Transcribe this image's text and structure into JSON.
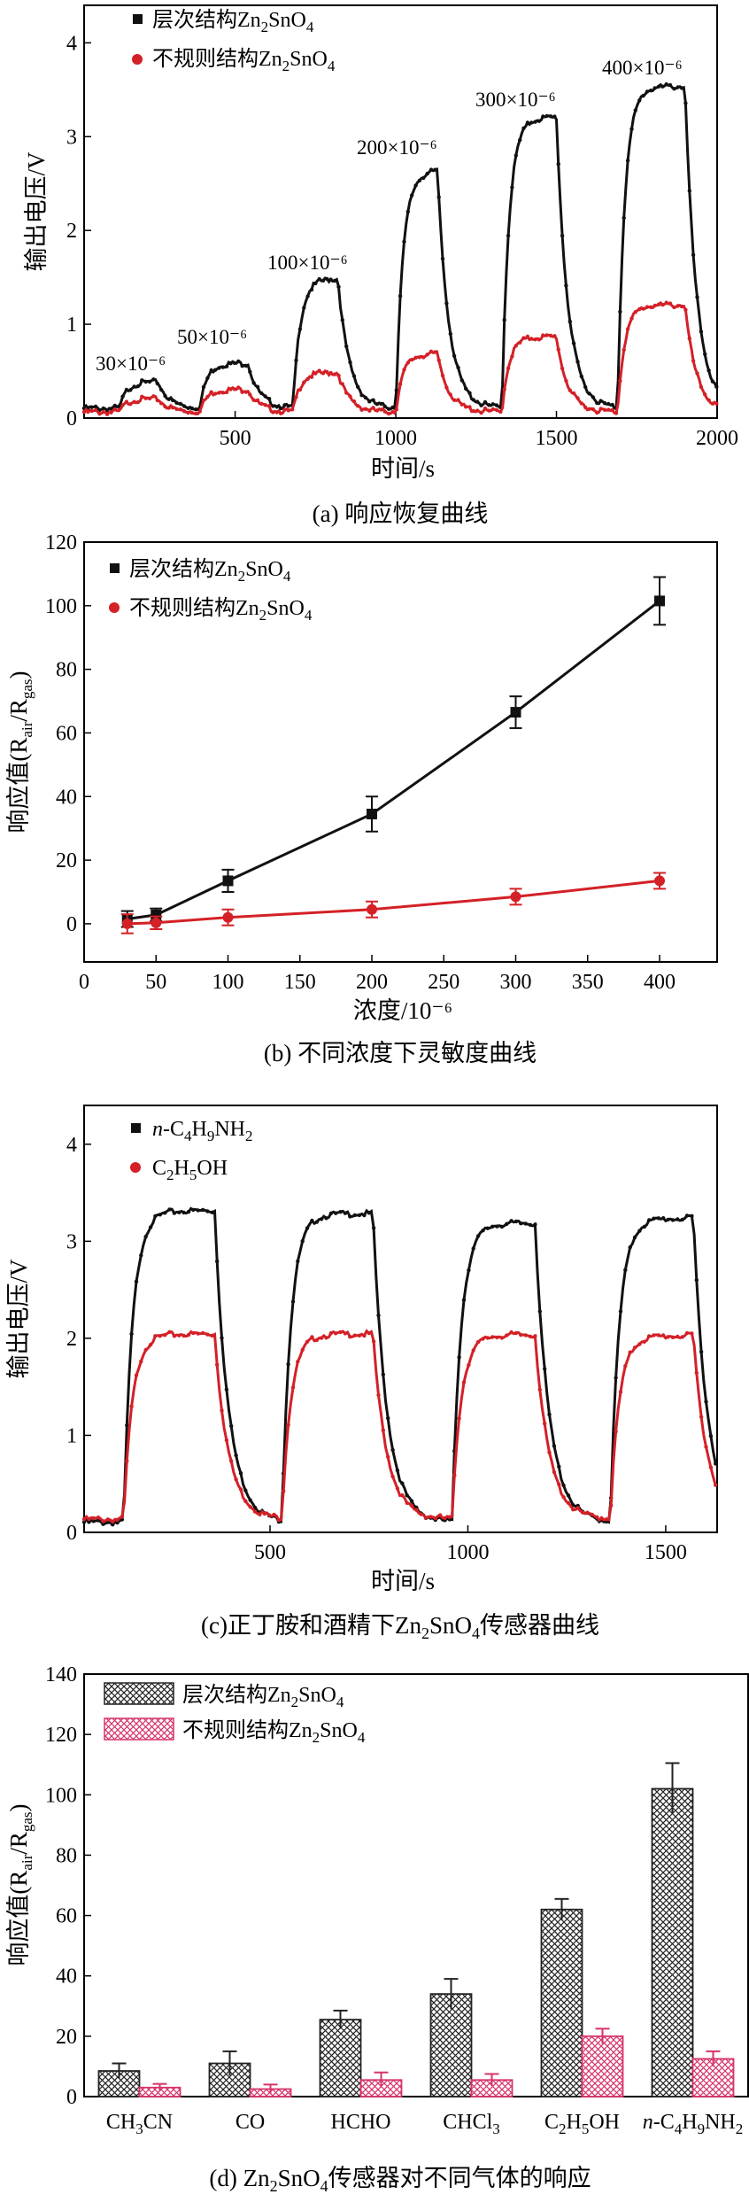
{
  "chart_data": [
    {
      "id": "a",
      "type": "line",
      "caption": "(a) 响应恢复曲线",
      "xlabel": "时间/s",
      "ylabel": "输出电压/V",
      "xlim": [
        30,
        2000
      ],
      "ylim": [
        0,
        4.4
      ],
      "xticks": [
        500,
        1000,
        1500,
        2000
      ],
      "yticks": [
        0,
        1,
        2,
        3,
        4
      ],
      "annotations": [
        "30×10⁻⁶",
        "50×10⁻⁶",
        "100×10⁻⁶",
        "200×10⁻⁶",
        "300×10⁻⁶",
        "400×10⁻⁶"
      ],
      "series": [
        {
          "name_prefix": "层次结构Zn",
          "name_sub1": "2",
          "name_mid": "SnO",
          "name_sub2": "4",
          "color": "#111111",
          "baseline": 0.12,
          "pulses": [
            {
              "on": 140,
              "off": 260,
              "level": 0.4
            },
            {
              "on": 390,
              "off": 540,
              "level": 0.6
            },
            {
              "on": 680,
              "off": 820,
              "level": 1.5
            },
            {
              "on": 1000,
              "off": 1130,
              "level": 2.65
            },
            {
              "on": 1330,
              "off": 1500,
              "level": 3.22
            },
            {
              "on": 1690,
              "off": 1900,
              "level": 3.55
            }
          ]
        },
        {
          "name_prefix": "不规则结构Zn",
          "name_sub1": "2",
          "name_mid": "SnO",
          "name_sub2": "4",
          "color": "#d42027",
          "baseline": 0.08,
          "pulses": [
            {
              "on": 140,
              "off": 260,
              "level": 0.22
            },
            {
              "on": 390,
              "off": 540,
              "level": 0.32
            },
            {
              "on": 680,
              "off": 820,
              "level": 0.5
            },
            {
              "on": 1000,
              "off": 1130,
              "level": 0.7
            },
            {
              "on": 1330,
              "off": 1500,
              "level": 0.88
            },
            {
              "on": 1690,
              "off": 1900,
              "level": 1.22
            }
          ]
        }
      ]
    },
    {
      "id": "b",
      "type": "line",
      "caption": "(b) 不同浓度下灵敏度曲线",
      "xlabel": "浓度/10⁻⁶",
      "ylabel_main": "响应值(R",
      "ylabel_sub1": "air",
      "ylabel_mid": "/R",
      "ylabel_sub2": "gas",
      "ylabel_end": ")",
      "xlim": [
        0,
        440
      ],
      "ylim": [
        -12,
        120
      ],
      "xticks": [
        0,
        50,
        100,
        150,
        200,
        250,
        300,
        350,
        400
      ],
      "yticks": [
        0,
        20,
        40,
        60,
        80,
        100,
        120
      ],
      "series": [
        {
          "name_prefix": "层次结构Zn",
          "name_sub1": "2",
          "name_mid": "SnO",
          "name_sub2": "4",
          "color": "#111111",
          "x": [
            30,
            50,
            100,
            200,
            300,
            400
          ],
          "y": [
            1.5,
            2.8,
            13.5,
            34.5,
            66.5,
            101.5
          ],
          "err": [
            2.5,
            2,
            3.5,
            5.5,
            5,
            7.5
          ]
        },
        {
          "name_prefix": "不规则结构Zn",
          "name_sub1": "2",
          "name_mid": "SnO",
          "name_sub2": "4",
          "color": "#d42027",
          "x": [
            30,
            50,
            100,
            200,
            300,
            400
          ],
          "y": [
            0,
            0.3,
            2,
            4.5,
            8.5,
            13.5
          ],
          "err": [
            3,
            2,
            2.5,
            2.5,
            2.5,
            2.5
          ]
        }
      ]
    },
    {
      "id": "c",
      "type": "line",
      "caption_prefix": "(c)正丁胺和酒精下Zn",
      "caption_sub1": "2",
      "caption_mid": "SnO",
      "caption_sub2": "4",
      "caption_end": "传感器曲线",
      "xlabel": "时间/s",
      "ylabel": "输出电压/V",
      "xlim": [
        30,
        1630
      ],
      "ylim": [
        0,
        4.4
      ],
      "xticks": [
        500,
        1000,
        1500
      ],
      "yticks": [
        0,
        1,
        2,
        3,
        4
      ],
      "series": [
        {
          "name_italic": "n",
          "name_rest": "-C",
          "name_sub1": "4",
          "name_mid": "H",
          "name_sub2": "9",
          "name_end": "NH",
          "name_sub3": "2",
          "color": "#111111",
          "baseline": 0.12,
          "pulses": [
            {
              "on": 130,
              "off": 360,
              "level": 3.33
            },
            {
              "on": 530,
              "off": 760,
              "level": 3.3
            },
            {
              "on": 960,
              "off": 1170,
              "level": 3.2
            },
            {
              "on": 1360,
              "off": 1570,
              "level": 3.25
            }
          ]
        },
        {
          "name_prefix": "C",
          "name_sub1": "2",
          "name_mid": "H",
          "name_sub2": "5",
          "name_end": "OH",
          "color": "#d42027",
          "baseline": 0.15,
          "pulses": [
            {
              "on": 130,
              "off": 360,
              "level": 2.06
            },
            {
              "on": 530,
              "off": 760,
              "level": 2.06
            },
            {
              "on": 960,
              "off": 1170,
              "level": 2.05
            },
            {
              "on": 1360,
              "off": 1570,
              "level": 2.04
            }
          ]
        }
      ]
    },
    {
      "id": "d",
      "type": "bar",
      "caption_prefix": "(d) Zn",
      "caption_sub1": "2",
      "caption_mid": "SnO",
      "caption_sub2": "4",
      "caption_end": "传感器对不同气体的响应",
      "ylabel_main": "响应值(R",
      "ylabel_sub1": "air",
      "ylabel_mid": "/R",
      "ylabel_sub2": "gas",
      "ylabel_end": ")",
      "ylim": [
        0,
        140
      ],
      "yticks": [
        0,
        20,
        40,
        60,
        80,
        100,
        120,
        140
      ],
      "categories": [
        {
          "p": "CH",
          "s1": "3",
          "m": "CN"
        },
        {
          "p": "CO"
        },
        {
          "p": "HCHO"
        },
        {
          "p": "CHCl",
          "s1": "3"
        },
        {
          "p": "C",
          "s1": "2",
          "m": "H",
          "s2": "5",
          "e": "OH"
        },
        {
          "i": "n",
          "p": "-C",
          "s1": "4",
          "m": "H",
          "s2": "9",
          "e": "NH",
          "s3": "2"
        }
      ],
      "series": [
        {
          "name_prefix": "层次结构Zn",
          "name_sub1": "2",
          "name_mid": "SnO",
          "name_sub2": "4",
          "color": "#222222",
          "values": [
            8.5,
            11,
            25.5,
            34,
            62,
            102
          ],
          "err": [
            2.5,
            4,
            3,
            5,
            3.5,
            8.5
          ]
        },
        {
          "name_prefix": "不规则结构Zn",
          "name_sub1": "2",
          "name_mid": "SnO",
          "name_sub2": "4",
          "color": "#d6336c",
          "values": [
            3,
            2.5,
            5.5,
            5.5,
            20,
            12.5
          ],
          "err": [
            1.2,
            1.5,
            2.5,
            2,
            2.5,
            2.5
          ]
        }
      ]
    }
  ]
}
